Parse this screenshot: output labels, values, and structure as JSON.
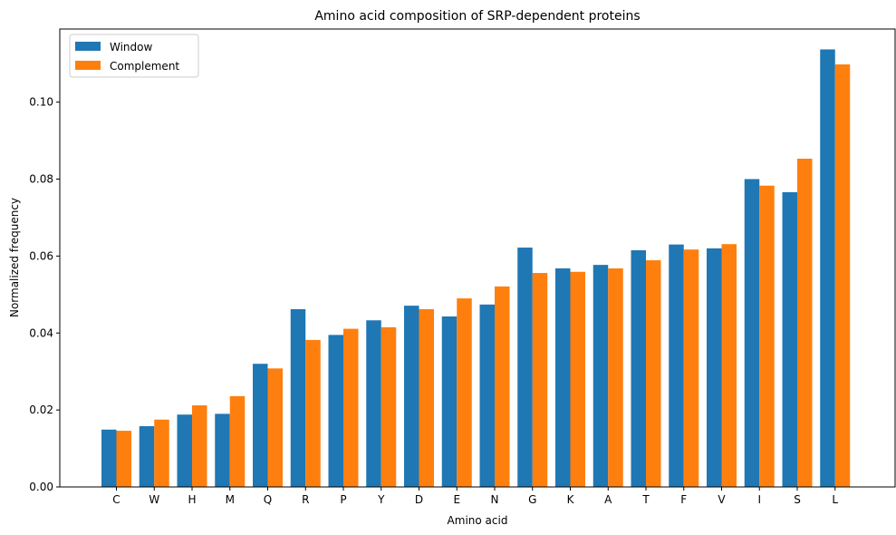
{
  "chart_data": {
    "type": "bar",
    "title": "Amino acid composition of SRP-dependent proteins",
    "xlabel": "Amino acid",
    "ylabel": "Normalized frequency",
    "categories": [
      "C",
      "W",
      "H",
      "M",
      "Q",
      "R",
      "P",
      "Y",
      "D",
      "E",
      "N",
      "G",
      "K",
      "A",
      "T",
      "F",
      "V",
      "I",
      "S",
      "L"
    ],
    "series": [
      {
        "name": "Window",
        "color": "#1f77b4",
        "values": [
          0.0149,
          0.0158,
          0.0188,
          0.019,
          0.032,
          0.0462,
          0.0395,
          0.0433,
          0.0471,
          0.0443,
          0.0474,
          0.0622,
          0.0568,
          0.0577,
          0.0615,
          0.063,
          0.062,
          0.08,
          0.0766,
          0.1137
        ]
      },
      {
        "name": "Complement",
        "color": "#ff7f0e",
        "values": [
          0.0146,
          0.0175,
          0.0212,
          0.0236,
          0.0308,
          0.0382,
          0.0411,
          0.0415,
          0.0462,
          0.049,
          0.0521,
          0.0556,
          0.0559,
          0.0568,
          0.0589,
          0.0617,
          0.0631,
          0.0783,
          0.0853,
          0.1098
        ]
      }
    ],
    "ylim": [
      0,
      0.119
    ],
    "yticks": [
      0.0,
      0.02,
      0.04,
      0.06,
      0.08,
      0.1
    ],
    "ytick_labels": [
      "0.00",
      "0.02",
      "0.04",
      "0.06",
      "0.08",
      "0.10"
    ],
    "grid": false,
    "legend_position": "top-left"
  }
}
